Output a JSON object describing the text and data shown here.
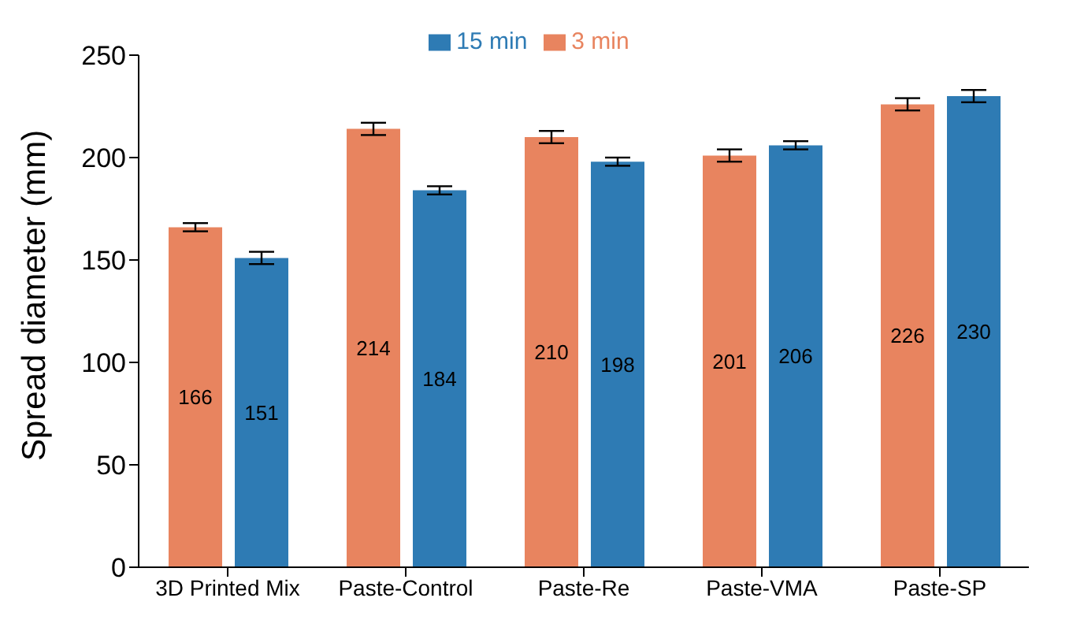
{
  "chart_data": {
    "type": "bar",
    "ylabel": "Spread diameter (mm)",
    "categories": [
      "3D Printed Mix",
      "Paste-Control",
      "Paste-Re",
      "Paste-VMA",
      "Paste-SP"
    ],
    "series": [
      {
        "name": "3 min",
        "color": "#e8845f",
        "values": [
          166,
          214,
          210,
          201,
          226
        ],
        "errors": [
          2,
          3,
          3,
          3,
          3
        ]
      },
      {
        "name": "15 min",
        "color": "#2e7bb4",
        "values": [
          151,
          184,
          198,
          206,
          230
        ],
        "errors": [
          3,
          2,
          2,
          2,
          3
        ]
      }
    ],
    "ylim": [
      0,
      250
    ],
    "yticks": [
      0,
      50,
      100,
      150,
      200,
      250
    ],
    "grid": false,
    "legend": "top",
    "data_labels": true
  }
}
